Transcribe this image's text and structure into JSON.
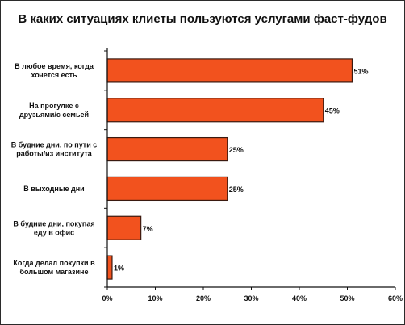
{
  "chart_data": {
    "type": "bar",
    "orientation": "horizontal",
    "title": "В каких ситуациях клиеты пользуются услугами фаст-фудов",
    "xlabel": "",
    "ylabel": "",
    "categories": [
      [
        "В любое время, когда",
        "хочется есть"
      ],
      [
        "На прогулке с",
        "друзьями/с семьей"
      ],
      [
        "В будние дни, по пути с",
        "работы/из института"
      ],
      [
        "В выходные дни"
      ],
      [
        "В будние дни, покупая",
        "еду в офис"
      ],
      [
        "Когда делал покупки в",
        "большом магазине"
      ]
    ],
    "values": [
      51,
      45,
      25,
      25,
      7,
      1
    ],
    "data_labels": [
      "51%",
      "45%",
      "25%",
      "25%",
      "7%",
      "1%"
    ],
    "xlim": [
      0,
      60
    ],
    "ticks": [
      0,
      10,
      20,
      30,
      40,
      50,
      60
    ],
    "tick_labels": [
      "0%",
      "10%",
      "20%",
      "30%",
      "40%",
      "50%",
      "60%"
    ],
    "grid": false,
    "legend": "none",
    "colors": {
      "bar": "#f2521e",
      "bar_stroke": "#3a1a10",
      "axis": "#111111"
    }
  }
}
